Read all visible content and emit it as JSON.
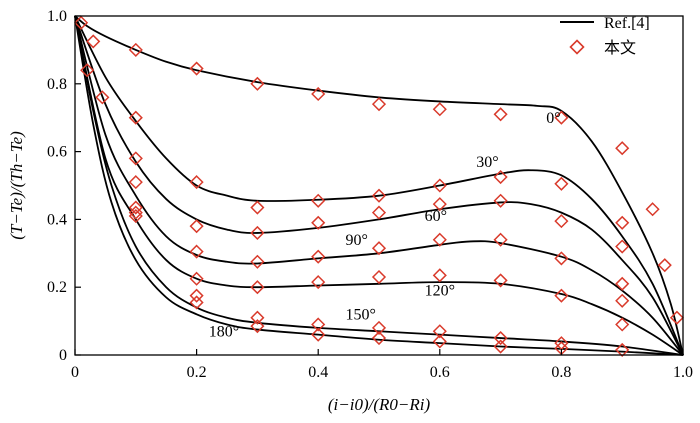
{
  "chart_data": {
    "type": "line",
    "xlabel": "(i−i0)/(R0−Ri)",
    "ylabel": "(T−Te)/(Th−Te)",
    "xlim": [
      0,
      1
    ],
    "ylim": [
      0,
      1
    ],
    "xticks": [
      "0",
      "0.2",
      "0.4",
      "0.6",
      "0.8",
      "1.0"
    ],
    "yticks": [
      "0",
      "0.2",
      "0.4",
      "0.6",
      "0.8",
      "1.0"
    ],
    "grid": false,
    "legend": {
      "placement": "top-right",
      "entries": [
        {
          "label": "Ref.[4]",
          "marker": "line",
          "color": "#000000"
        },
        {
          "label": "本文",
          "marker": "diamond",
          "color": "#d93a2b"
        }
      ]
    },
    "series": [
      {
        "name": "0°",
        "curve": [
          [
            0,
            1.0
          ],
          [
            0.02,
            0.97
          ],
          [
            0.05,
            0.94
          ],
          [
            0.1,
            0.9
          ],
          [
            0.15,
            0.865
          ],
          [
            0.2,
            0.84
          ],
          [
            0.3,
            0.805
          ],
          [
            0.4,
            0.78
          ],
          [
            0.5,
            0.76
          ],
          [
            0.6,
            0.748
          ],
          [
            0.7,
            0.74
          ],
          [
            0.76,
            0.735
          ],
          [
            0.8,
            0.72
          ],
          [
            0.85,
            0.63
          ],
          [
            0.9,
            0.48
          ],
          [
            0.95,
            0.3
          ],
          [
            0.98,
            0.15
          ],
          [
            1.0,
            0.0
          ]
        ],
        "points": [
          [
            0.01,
            0.98
          ],
          [
            0.1,
            0.9
          ],
          [
            0.2,
            0.845
          ],
          [
            0.3,
            0.8
          ],
          [
            0.4,
            0.77
          ],
          [
            0.5,
            0.74
          ],
          [
            0.6,
            0.725
          ],
          [
            0.7,
            0.71
          ],
          [
            0.8,
            0.7
          ],
          [
            0.9,
            0.61
          ],
          [
            0.95,
            0.43
          ],
          [
            0.97,
            0.265
          ],
          [
            0.99,
            0.11
          ]
        ]
      },
      {
        "name": "30°",
        "curve": [
          [
            0,
            1.0
          ],
          [
            0.05,
            0.82
          ],
          [
            0.1,
            0.69
          ],
          [
            0.15,
            0.58
          ],
          [
            0.2,
            0.5
          ],
          [
            0.25,
            0.47
          ],
          [
            0.3,
            0.455
          ],
          [
            0.4,
            0.458
          ],
          [
            0.5,
            0.47
          ],
          [
            0.6,
            0.5
          ],
          [
            0.7,
            0.535
          ],
          [
            0.75,
            0.545
          ],
          [
            0.8,
            0.53
          ],
          [
            0.85,
            0.46
          ],
          [
            0.9,
            0.35
          ],
          [
            0.95,
            0.21
          ],
          [
            1.0,
            0.0
          ]
        ],
        "points": [
          [
            0.1,
            0.7
          ],
          [
            0.2,
            0.51
          ],
          [
            0.3,
            0.435
          ],
          [
            0.4,
            0.455
          ],
          [
            0.5,
            0.47
          ],
          [
            0.6,
            0.5
          ],
          [
            0.7,
            0.525
          ],
          [
            0.8,
            0.505
          ],
          [
            0.9,
            0.39
          ]
        ]
      },
      {
        "name": "60°",
        "curve": [
          [
            0,
            1.0
          ],
          [
            0.05,
            0.74
          ],
          [
            0.1,
            0.57
          ],
          [
            0.15,
            0.46
          ],
          [
            0.2,
            0.4
          ],
          [
            0.25,
            0.37
          ],
          [
            0.3,
            0.36
          ],
          [
            0.4,
            0.375
          ],
          [
            0.5,
            0.4
          ],
          [
            0.6,
            0.43
          ],
          [
            0.7,
            0.45
          ],
          [
            0.75,
            0.445
          ],
          [
            0.8,
            0.42
          ],
          [
            0.85,
            0.37
          ],
          [
            0.9,
            0.28
          ],
          [
            0.95,
            0.17
          ],
          [
            1.0,
            0.0
          ]
        ],
        "points": [
          [
            0.1,
            0.58
          ],
          [
            0.2,
            0.38
          ],
          [
            0.3,
            0.36
          ],
          [
            0.4,
            0.39
          ],
          [
            0.5,
            0.42
          ],
          [
            0.6,
            0.445
          ],
          [
            0.7,
            0.455
          ],
          [
            0.8,
            0.395
          ],
          [
            0.9,
            0.32
          ]
        ]
      },
      {
        "name": "90°",
        "curve": [
          [
            0,
            1.0
          ],
          [
            0.05,
            0.65
          ],
          [
            0.1,
            0.47
          ],
          [
            0.15,
            0.35
          ],
          [
            0.2,
            0.295
          ],
          [
            0.25,
            0.275
          ],
          [
            0.3,
            0.27
          ],
          [
            0.4,
            0.285
          ],
          [
            0.5,
            0.3
          ],
          [
            0.6,
            0.325
          ],
          [
            0.65,
            0.335
          ],
          [
            0.7,
            0.33
          ],
          [
            0.8,
            0.29
          ],
          [
            0.85,
            0.25
          ],
          [
            0.9,
            0.19
          ],
          [
            0.95,
            0.11
          ],
          [
            1.0,
            0.0
          ]
        ],
        "points": [
          [
            0.1,
            0.51
          ],
          [
            0.2,
            0.305
          ],
          [
            0.3,
            0.275
          ],
          [
            0.4,
            0.29
          ],
          [
            0.5,
            0.315
          ],
          [
            0.6,
            0.34
          ],
          [
            0.7,
            0.34
          ],
          [
            0.8,
            0.285
          ],
          [
            0.9,
            0.21
          ]
        ]
      },
      {
        "name": "120°",
        "curve": [
          [
            0,
            1.0
          ],
          [
            0.05,
            0.58
          ],
          [
            0.1,
            0.4
          ],
          [
            0.15,
            0.28
          ],
          [
            0.2,
            0.225
          ],
          [
            0.25,
            0.205
          ],
          [
            0.3,
            0.2
          ],
          [
            0.4,
            0.205
          ],
          [
            0.5,
            0.21
          ],
          [
            0.6,
            0.215
          ],
          [
            0.7,
            0.21
          ],
          [
            0.8,
            0.18
          ],
          [
            0.85,
            0.15
          ],
          [
            0.9,
            0.11
          ],
          [
            0.95,
            0.06
          ],
          [
            1.0,
            0.0
          ]
        ],
        "points": [
          [
            0.1,
            0.435
          ],
          [
            0.2,
            0.225
          ],
          [
            0.3,
            0.2
          ],
          [
            0.4,
            0.215
          ],
          [
            0.5,
            0.23
          ],
          [
            0.6,
            0.235
          ],
          [
            0.7,
            0.22
          ],
          [
            0.8,
            0.175
          ],
          [
            0.9,
            0.16
          ]
        ]
      },
      {
        "name": "150°",
        "curve": [
          [
            0,
            1.0
          ],
          [
            0.03,
            0.72
          ],
          [
            0.06,
            0.5
          ],
          [
            0.1,
            0.32
          ],
          [
            0.15,
            0.2
          ],
          [
            0.2,
            0.14
          ],
          [
            0.25,
            0.11
          ],
          [
            0.3,
            0.095
          ],
          [
            0.4,
            0.08
          ],
          [
            0.5,
            0.07
          ],
          [
            0.6,
            0.06
          ],
          [
            0.7,
            0.05
          ],
          [
            0.8,
            0.04
          ],
          [
            0.9,
            0.025
          ],
          [
            1.0,
            0.0
          ]
        ],
        "points": [
          [
            0.1,
            0.42
          ],
          [
            0.2,
            0.175
          ],
          [
            0.3,
            0.11
          ],
          [
            0.4,
            0.09
          ],
          [
            0.5,
            0.08
          ],
          [
            0.6,
            0.07
          ],
          [
            0.7,
            0.05
          ],
          [
            0.8,
            0.035
          ],
          [
            0.9,
            0.09
          ]
        ]
      },
      {
        "name": "180°",
        "curve": [
          [
            0,
            1.0
          ],
          [
            0.03,
            0.68
          ],
          [
            0.06,
            0.45
          ],
          [
            0.1,
            0.28
          ],
          [
            0.15,
            0.17
          ],
          [
            0.2,
            0.12
          ],
          [
            0.25,
            0.09
          ],
          [
            0.3,
            0.075
          ],
          [
            0.4,
            0.06
          ],
          [
            0.5,
            0.045
          ],
          [
            0.6,
            0.035
          ],
          [
            0.7,
            0.025
          ],
          [
            0.8,
            0.018
          ],
          [
            0.9,
            0.01
          ],
          [
            1.0,
            0.0
          ]
        ],
        "points": [
          [
            0.02,
            0.84
          ],
          [
            0.03,
            0.925
          ],
          [
            0.045,
            0.76
          ],
          [
            0.1,
            0.41
          ],
          [
            0.2,
            0.155
          ],
          [
            0.3,
            0.085
          ],
          [
            0.4,
            0.06
          ],
          [
            0.5,
            0.05
          ],
          [
            0.6,
            0.04
          ],
          [
            0.7,
            0.025
          ],
          [
            0.8,
            0.02
          ],
          [
            0.9,
            0.015
          ]
        ]
      }
    ],
    "annotations": [
      {
        "text": "0°",
        "x": 0.775,
        "y": 0.685
      },
      {
        "text": "30°",
        "x": 0.66,
        "y": 0.555
      },
      {
        "text": "60°",
        "x": 0.575,
        "y": 0.395
      },
      {
        "text": "90°",
        "x": 0.445,
        "y": 0.325
      },
      {
        "text": "120°",
        "x": 0.575,
        "y": 0.175
      },
      {
        "text": "150°",
        "x": 0.445,
        "y": 0.105
      },
      {
        "text": "180°",
        "x": 0.22,
        "y": 0.055
      }
    ]
  }
}
